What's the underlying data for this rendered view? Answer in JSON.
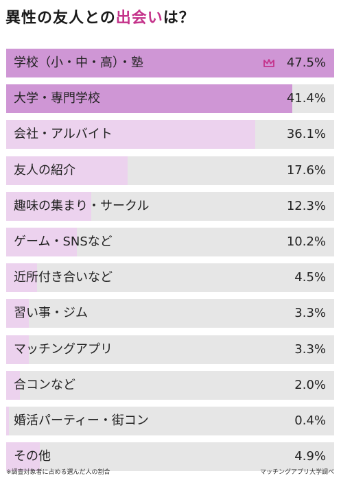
{
  "header": {
    "title_prefix": "異性の友人との",
    "title_highlight": "出会い",
    "title_suffix": "は？"
  },
  "footer": {
    "note": "※調査対象者に占める選んだ人の割合",
    "source": "マッチングアプリ大学調べ"
  },
  "colors": {
    "top_bar": "#cf96d5",
    "other_bar": "#ecd2ee",
    "track": "#e6e6e6",
    "crown": "#c4328a",
    "highlight": "#c4328a"
  },
  "icons": {
    "top_marker": "crown-icon"
  },
  "chart_data": {
    "type": "bar",
    "orientation": "horizontal",
    "categories": [
      "学校（小・中・高）・塾",
      "大学・専門学校",
      "会社・アルバイト",
      "友人の紹介",
      "趣味の集まり・サークル",
      "ゲーム・SNSなど",
      "近所付き合いなど",
      "習い事・ジム",
      "マッチングアプリ",
      "合コンなど",
      "婚活パーティー・街コン",
      "その他"
    ],
    "values": [
      47.5,
      41.4,
      36.1,
      17.6,
      12.3,
      10.2,
      4.5,
      3.3,
      3.3,
      2.0,
      0.4,
      4.9
    ],
    "value_labels": [
      "47.5%",
      "41.4%",
      "36.1%",
      "17.6%",
      "12.3%",
      "10.2%",
      "4.5%",
      "3.3%",
      "3.3%",
      "2.0%",
      "0.4%",
      "4.9%"
    ],
    "xlim": [
      0,
      47.5
    ],
    "highlight_top": 2
  }
}
